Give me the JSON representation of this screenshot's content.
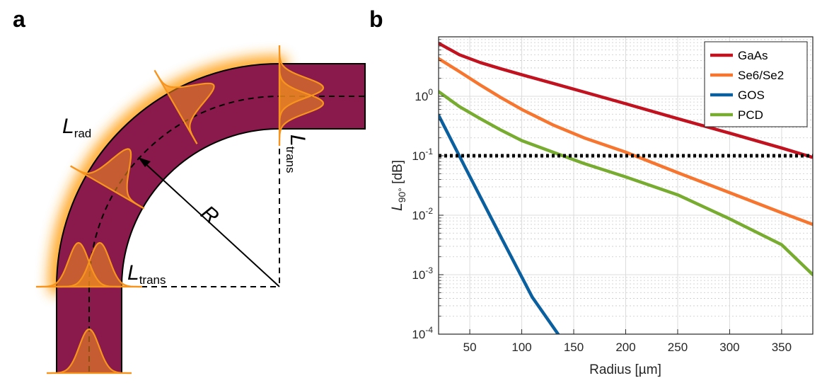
{
  "panels": {
    "a": {
      "letter": "a",
      "labels": {
        "l_rad": {
          "main": "L",
          "sub": "rad"
        },
        "l_trans_horizontal": {
          "main": "L",
          "sub": "trans"
        },
        "l_trans_vertical": {
          "main": "L",
          "sub": "trans"
        },
        "radius": "R"
      },
      "colors": {
        "waveguide": "#8a1a4b",
        "glow": "#ffa31a",
        "mode_profile": "#f7941d"
      }
    },
    "b": {
      "letter": "b"
    }
  },
  "chart_data": {
    "type": "line",
    "title": "",
    "xlabel": "Radius [µm]",
    "ylabel": {
      "main": "L",
      "sub": "90°",
      "unit": " [dB]"
    },
    "xlim": [
      20,
      380
    ],
    "ylim": [
      0.0001,
      10
    ],
    "yscale": "log",
    "grid": true,
    "x_ticks": [
      50,
      100,
      150,
      200,
      250,
      300,
      350
    ],
    "y_ticks": [
      {
        "base": "10",
        "exp": "-4",
        "value": 0.0001
      },
      {
        "base": "10",
        "exp": "-3",
        "value": 0.001
      },
      {
        "base": "10",
        "exp": "-2",
        "value": 0.01
      },
      {
        "base": "10",
        "exp": "-1",
        "value": 0.1
      },
      {
        "base": "10",
        "exp": "0",
        "value": 1
      }
    ],
    "legend_position": "top-right",
    "series": [
      {
        "name": "GaAs",
        "color": "#c1121f",
        "x": [
          20,
          40,
          60,
          80,
          100,
          130,
          160,
          200,
          250,
          300,
          350,
          380
        ],
        "y": [
          7.8,
          5.0,
          3.7,
          2.9,
          2.3,
          1.65,
          1.18,
          0.75,
          0.42,
          0.24,
          0.135,
          0.094
        ]
      },
      {
        "name": "Se6/Se2",
        "color": "#f7762f",
        "x": [
          20,
          40,
          60,
          80,
          100,
          130,
          160,
          200,
          250,
          300,
          350,
          380
        ],
        "y": [
          4.3,
          2.6,
          1.55,
          0.95,
          0.6,
          0.33,
          0.2,
          0.115,
          0.052,
          0.024,
          0.011,
          0.007
        ]
      },
      {
        "name": "GOS",
        "color": "#0a5f9e",
        "x": [
          20,
          50,
          80,
          110,
          135
        ],
        "y": [
          0.48,
          0.045,
          0.0043,
          0.00042,
          0.0001
        ]
      },
      {
        "name": "PCD",
        "color": "#77ac30",
        "x": [
          20,
          40,
          60,
          80,
          100,
          130,
          160,
          200,
          250,
          300,
          350,
          380
        ],
        "y": [
          1.2,
          0.67,
          0.42,
          0.27,
          0.18,
          0.115,
          0.074,
          0.044,
          0.022,
          0.0087,
          0.0032,
          0.001
        ]
      },
      {
        "name": "threshold",
        "style": "dotted",
        "color": "#000000",
        "x": [
          20,
          380
        ],
        "y": [
          0.1,
          0.1
        ]
      }
    ]
  }
}
